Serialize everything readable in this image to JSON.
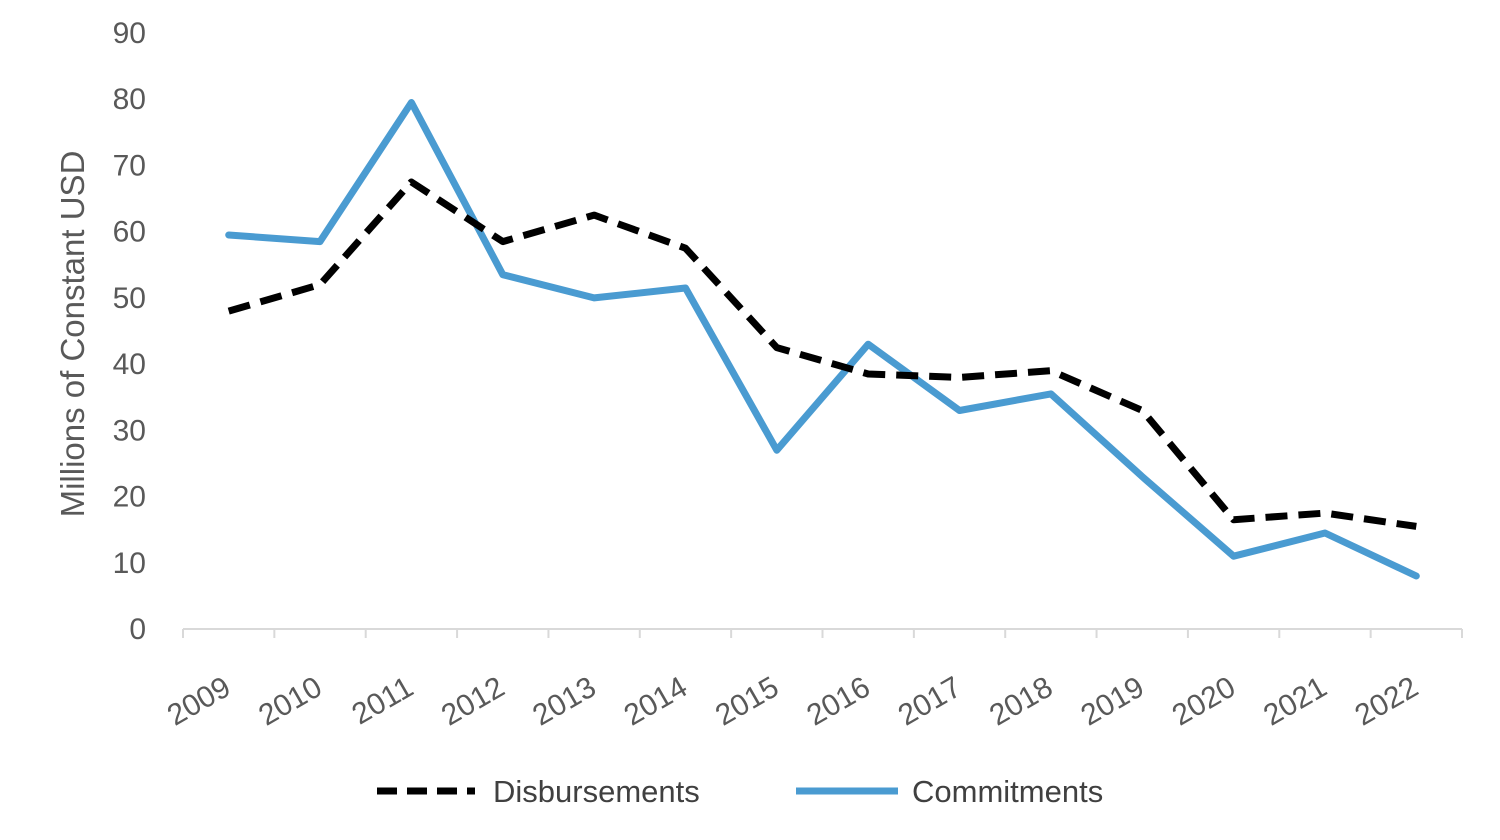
{
  "chart_data": {
    "type": "line",
    "title": "",
    "xlabel": "",
    "ylabel": "Millions of Constant USD",
    "x": [
      "2009",
      "2010",
      "2011",
      "2012",
      "2013",
      "2014",
      "2015",
      "2016",
      "2017",
      "2018",
      "2019",
      "2020",
      "2021",
      "2022"
    ],
    "ylim": [
      0,
      90
    ],
    "yticks": [
      0,
      10,
      20,
      30,
      40,
      50,
      60,
      70,
      80,
      90
    ],
    "grid": false,
    "legend_position": "bottom",
    "series": [
      {
        "name": "Disbursements",
        "style": "dashed",
        "color": "#000000",
        "values": [
          48,
          52,
          67.5,
          58.5,
          62.5,
          57.5,
          42.5,
          38.5,
          38,
          39,
          33,
          16.5,
          17.5,
          15.5
        ]
      },
      {
        "name": "Commitments",
        "style": "solid",
        "color": "#4A9BD1",
        "values": [
          59.5,
          58.5,
          79.5,
          53.5,
          50,
          51.5,
          27,
          43,
          33,
          35.5,
          23,
          11,
          14.5,
          8
        ]
      }
    ]
  }
}
